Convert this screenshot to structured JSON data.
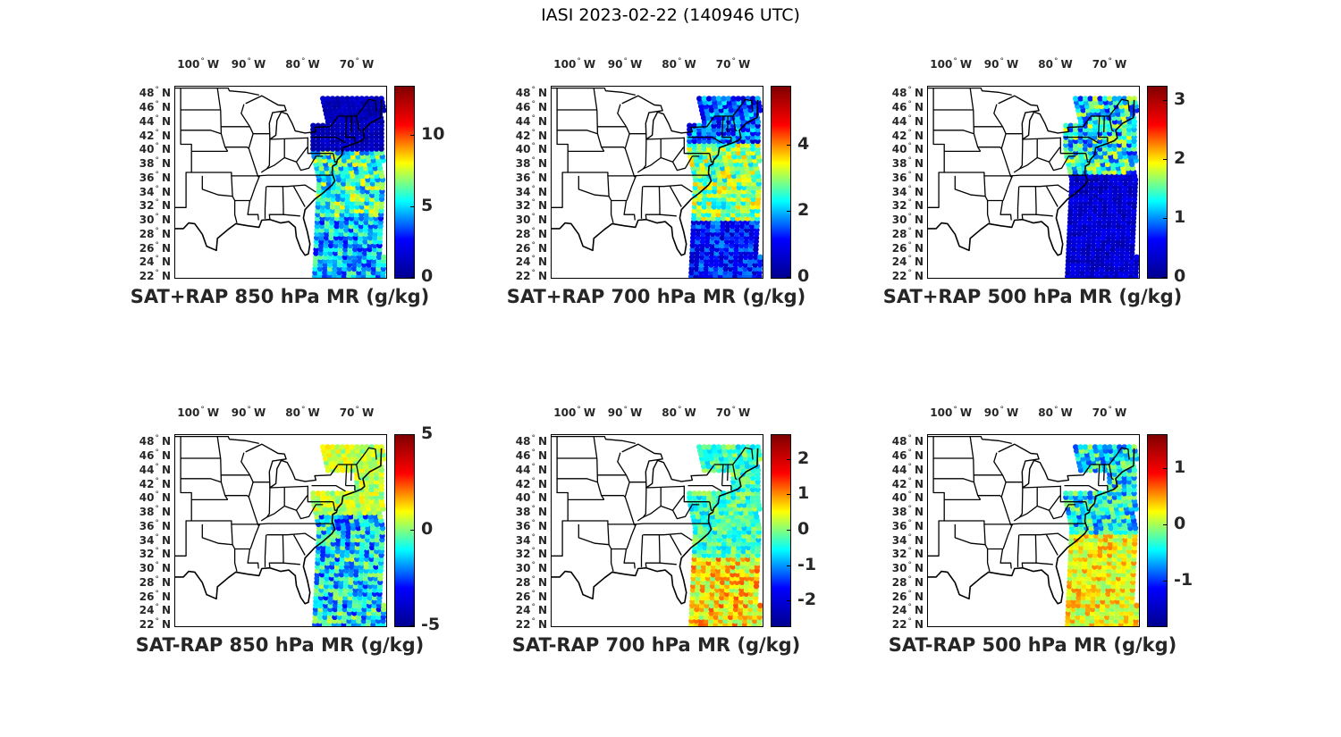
{
  "figure_title": "IASI 2023-02-22 (140946 UTC)",
  "lon_labels": [
    {
      "deg": "100",
      "dir": "W"
    },
    {
      "deg": "90",
      "dir": "W"
    },
    {
      "deg": "80",
      "dir": "W"
    },
    {
      "deg": "70",
      "dir": "W"
    }
  ],
  "lat_labels": [
    {
      "deg": "48",
      "dir": "N"
    },
    {
      "deg": "46",
      "dir": "N"
    },
    {
      "deg": "44",
      "dir": "N"
    },
    {
      "deg": "42",
      "dir": "N"
    },
    {
      "deg": "40",
      "dir": "N"
    },
    {
      "deg": "38",
      "dir": "N"
    },
    {
      "deg": "36",
      "dir": "N"
    },
    {
      "deg": "34",
      "dir": "N"
    },
    {
      "deg": "32",
      "dir": "N"
    },
    {
      "deg": "30",
      "dir": "N"
    },
    {
      "deg": "28",
      "dir": "N"
    },
    {
      "deg": "26",
      "dir": "N"
    },
    {
      "deg": "24",
      "dir": "N"
    },
    {
      "deg": "22",
      "dir": "N"
    }
  ],
  "colormap": "jet",
  "colormap_stops": [
    "#00008f",
    "#0000ff",
    "#00ffff",
    "#ffff00",
    "#ff0000",
    "#800000"
  ],
  "map_extent": {
    "lon": [
      -105,
      -66
    ],
    "lat": [
      22,
      49
    ]
  },
  "panels": [
    {
      "title": "SAT+RAP 850 hPa MR (g/kg)",
      "ticks": [
        "10",
        "5",
        "0"
      ],
      "tick_values": [
        10,
        5,
        0
      ],
      "range": [
        0,
        13.5
      ]
    },
    {
      "title": "SAT+RAP 700 hPa MR (g/kg)",
      "ticks": [
        "4",
        "2",
        "0"
      ],
      "tick_values": [
        4,
        2,
        0
      ],
      "range": [
        0,
        5.8
      ]
    },
    {
      "title": "SAT+RAP 500 hPa MR (g/kg)",
      "ticks": [
        "3",
        "2",
        "1",
        "0"
      ],
      "tick_values": [
        3,
        2,
        1,
        0
      ],
      "range": [
        0,
        3.25
      ]
    },
    {
      "title": "SAT-RAP 850 hPa MR (g/kg)",
      "ticks": [
        "5",
        "0",
        "-5"
      ],
      "tick_values": [
        5,
        0,
        -5
      ],
      "range": [
        -5,
        5
      ]
    },
    {
      "title": "SAT-RAP 700 hPa MR (g/kg)",
      "ticks": [
        "2",
        "1",
        "0",
        "-1",
        "-2"
      ],
      "tick_values": [
        2,
        1,
        0,
        -1,
        -2
      ],
      "range": [
        -2.7,
        2.7
      ]
    },
    {
      "title": "SAT-RAP 500 hPa MR (g/kg)",
      "ticks": [
        "1",
        "0",
        "-1"
      ],
      "tick_values": [
        1,
        0,
        -1
      ],
      "range": [
        -1.8,
        1.6
      ]
    }
  ]
}
